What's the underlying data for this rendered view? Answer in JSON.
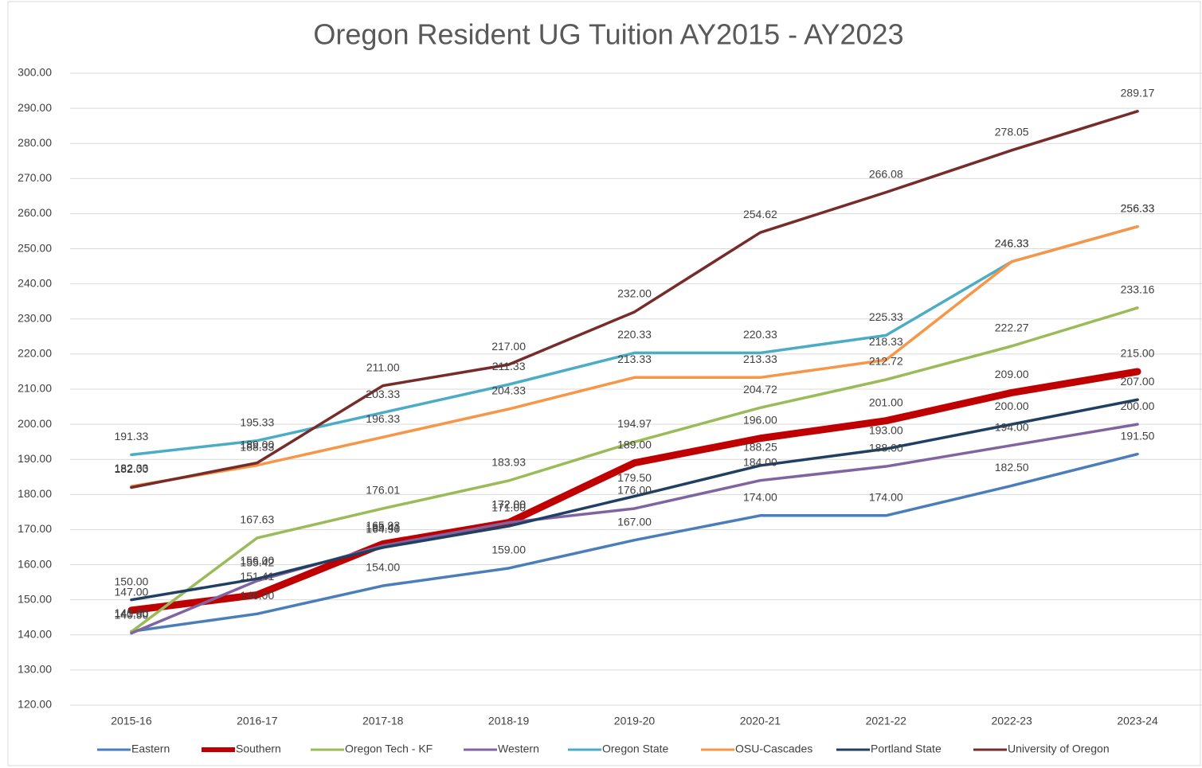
{
  "chart_data": {
    "type": "line",
    "title": "Oregon Resident UG Tuition AY2015 - AY2023",
    "categories": [
      "2015-16",
      "2016-17",
      "2017-18",
      "2018-19",
      "2019-20",
      "2020-21",
      "2021-22",
      "2022-23",
      "2023-24"
    ],
    "ylim": [
      120,
      300
    ],
    "yticks": [
      {
        "value": 120,
        "label": "120.00"
      },
      {
        "value": 130,
        "label": "130.00"
      },
      {
        "value": 140,
        "label": "140.00"
      },
      {
        "value": 150,
        "label": "150.00"
      },
      {
        "value": 160,
        "label": "160.00"
      },
      {
        "value": 170,
        "label": "170.00"
      },
      {
        "value": 180,
        "label": "180.00"
      },
      {
        "value": 190,
        "label": "190.00"
      },
      {
        "value": 200,
        "label": "200.00"
      },
      {
        "value": 210,
        "label": "210.00"
      },
      {
        "value": 220,
        "label": "220.00"
      },
      {
        "value": 230,
        "label": "230.00"
      },
      {
        "value": 240,
        "label": "240.00"
      },
      {
        "value": 250,
        "label": "250.00"
      },
      {
        "value": 260,
        "label": "260.00"
      },
      {
        "value": 270,
        "label": "270.00"
      },
      {
        "value": 280,
        "label": "280.00"
      },
      {
        "value": 290,
        "label": "290.00"
      },
      {
        "value": 300,
        "label": "300.00"
      }
    ],
    "grid": true,
    "legend": "bottom",
    "series": [
      {
        "name": "Eastern",
        "color": "#4a7ebb",
        "values": [
          141,
          146,
          154,
          159,
          167,
          174,
          174,
          182.5,
          191.5
        ],
        "value_labels": [
          "141.00",
          "146.00",
          "154.00",
          "159.00",
          "167.00",
          "174.00",
          "174.00",
          "182.50",
          "191.50"
        ]
      },
      {
        "name": "Southern",
        "color": "#c00000",
        "values": [
          147,
          151.41,
          165.93,
          172,
          189,
          196,
          201,
          209,
          215
        ],
        "value_labels": [
          "147.00",
          "151.41",
          "165.93",
          "172.00",
          "189.00",
          "196.00",
          "201.00",
          "209.00",
          "215.00"
        ]
      },
      {
        "name": "Oregon Tech - KF",
        "color": "#9bbb59",
        "values": [
          140.9,
          167.63,
          176.01,
          183.93,
          194.97,
          204.72,
          212.72,
          222.27,
          233.16
        ],
        "value_labels": [
          "140.90",
          "167.63",
          "176.01",
          "183.93",
          "194.97",
          "204.72",
          "212.72",
          "222.27",
          "233.16"
        ]
      },
      {
        "name": "Western",
        "color": "#8064a2",
        "values": [
          140.5,
          155.42,
          165.41,
          172,
          176,
          184,
          188,
          194,
          200
        ],
        "value_labels": [
          "140.50",
          "155.42",
          "165.41",
          "172.00",
          "176.00",
          "184.00",
          "188.00",
          "194.00",
          "200.00"
        ]
      },
      {
        "name": "Oregon State",
        "color": "#4bacc6",
        "values": [
          191.33,
          195.33,
          203.33,
          211.33,
          220.33,
          220.33,
          225.33,
          246.33,
          256.33
        ],
        "value_labels": [
          "191.33",
          "195.33",
          "203.33",
          "211.33",
          "220.33",
          "220.33",
          "225.33",
          "246.33",
          "256.33"
        ]
      },
      {
        "name": "OSU-Cascades",
        "color": "#f79646",
        "values": [
          182.33,
          188.33,
          196.33,
          204.33,
          213.33,
          213.33,
          218.33,
          246.33,
          256.33
        ],
        "value_labels": [
          "182.33",
          "188.33",
          "196.33",
          "204.33",
          "213.33",
          "213.33",
          "218.33",
          "246.33",
          "256.33"
        ]
      },
      {
        "name": "Portland State",
        "color": "#1f3f63",
        "values": [
          150,
          156,
          164.9,
          171,
          179.5,
          188.25,
          193,
          200,
          207
        ],
        "value_labels": [
          "150.00",
          "156.00",
          "164.90",
          "171.00",
          "179.50",
          "188.25",
          "193.00",
          "200.00",
          "207.00"
        ]
      },
      {
        "name": "University of Oregon",
        "color": "#772c2a",
        "values": [
          182,
          189,
          211,
          217,
          232,
          254.62,
          266.08,
          278.05,
          289.17
        ],
        "value_labels": [
          "182.00",
          "189.00",
          "211.00",
          "217.00",
          "232.00",
          "254.62",
          "266.08",
          "278.05",
          "289.17"
        ]
      }
    ]
  }
}
